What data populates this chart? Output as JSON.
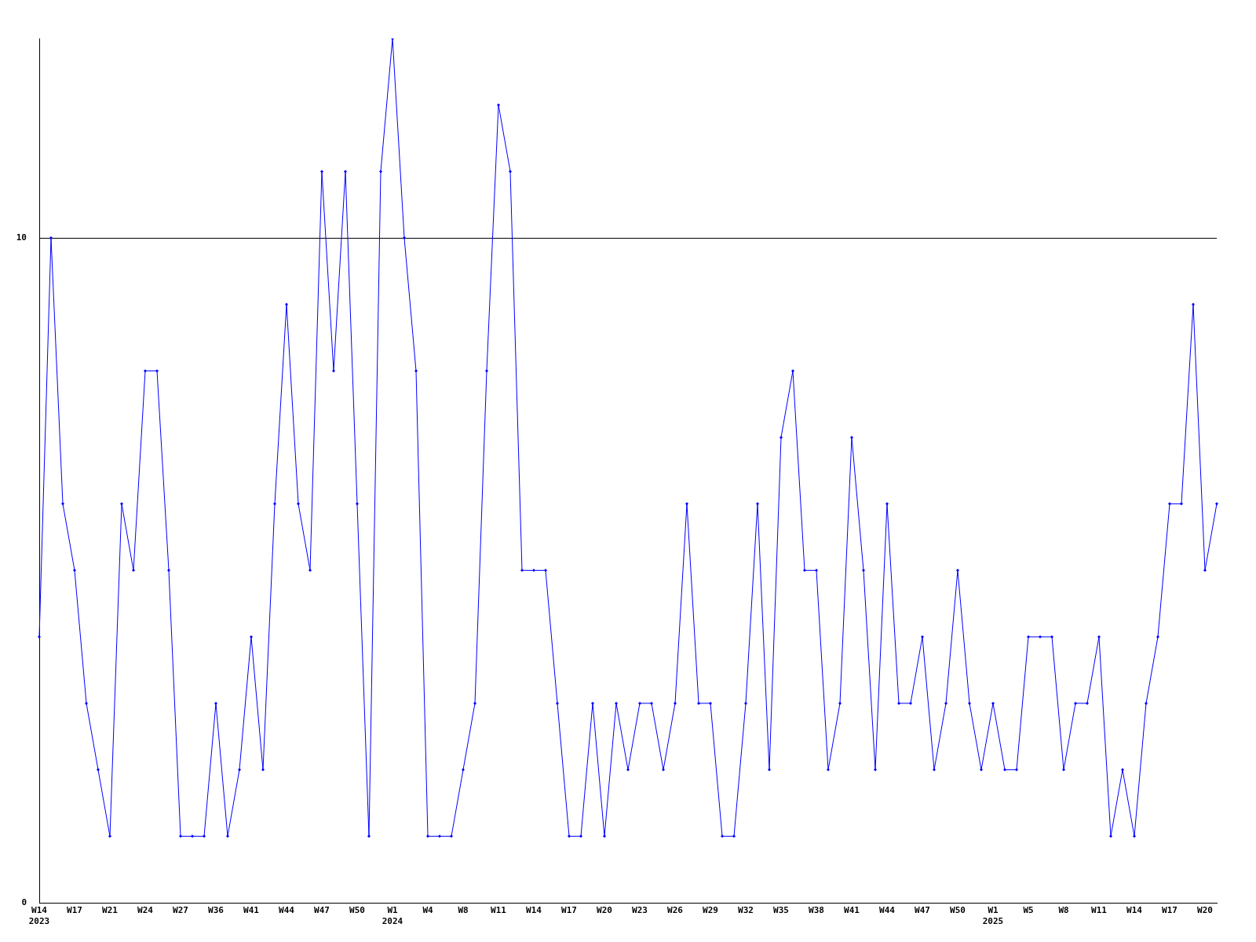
{
  "chart_data": {
    "type": "line",
    "categories": [
      "W14\n2023",
      null,
      null,
      "W17",
      null,
      null,
      "W21",
      null,
      null,
      "W24",
      null,
      null,
      "W27",
      null,
      null,
      "W36",
      null,
      null,
      "W41",
      null,
      null,
      "W44",
      null,
      null,
      "W47",
      null,
      null,
      "W50",
      null,
      null,
      "W1\n2024",
      null,
      null,
      "W4",
      null,
      null,
      "W8",
      null,
      null,
      "W11",
      null,
      null,
      "W14",
      null,
      null,
      "W17",
      null,
      null,
      "W20",
      null,
      null,
      "W23",
      null,
      null,
      "W26",
      null,
      null,
      "W29",
      null,
      null,
      "W32",
      null,
      null,
      "W35",
      null,
      null,
      "W38",
      null,
      null,
      "W41",
      null,
      null,
      "W44",
      null,
      null,
      "W47",
      null,
      null,
      "W50",
      null,
      null,
      "W1\n2025",
      null,
      null,
      "W5",
      null,
      null,
      "W8",
      null,
      null,
      "W11",
      null,
      null,
      "W14",
      null,
      null,
      "W17",
      null,
      null,
      "W20",
      null
    ],
    "series": [
      {
        "color": "#0000ff",
        "values": [
          4,
          10,
          6,
          5,
          3,
          2,
          1,
          6,
          5,
          8,
          8,
          5,
          1,
          1,
          1,
          3,
          1,
          2,
          4,
          2,
          6,
          9,
          6,
          5,
          11,
          8,
          11,
          6,
          1,
          11,
          13,
          10,
          8,
          1,
          1,
          1,
          2,
          3,
          8,
          12,
          11,
          5,
          5,
          5,
          3,
          1,
          1,
          3,
          1,
          3,
          2,
          3,
          3,
          2,
          3,
          6,
          3,
          3,
          1,
          1,
          3,
          6,
          2,
          7,
          8,
          5,
          5,
          2,
          3,
          7,
          5,
          2,
          6,
          3,
          3,
          4,
          2,
          3,
          5,
          3,
          2,
          3,
          2,
          2,
          4,
          4,
          4,
          2,
          3,
          3,
          4,
          1,
          2,
          1,
          3,
          4,
          6,
          6,
          9,
          5,
          6
        ]
      }
    ],
    "ylim": [
      0,
      13
    ],
    "yticks": [
      0,
      10
    ],
    "grid": "y",
    "legend": false,
    "marker": "diamond",
    "line_style": "solid"
  }
}
